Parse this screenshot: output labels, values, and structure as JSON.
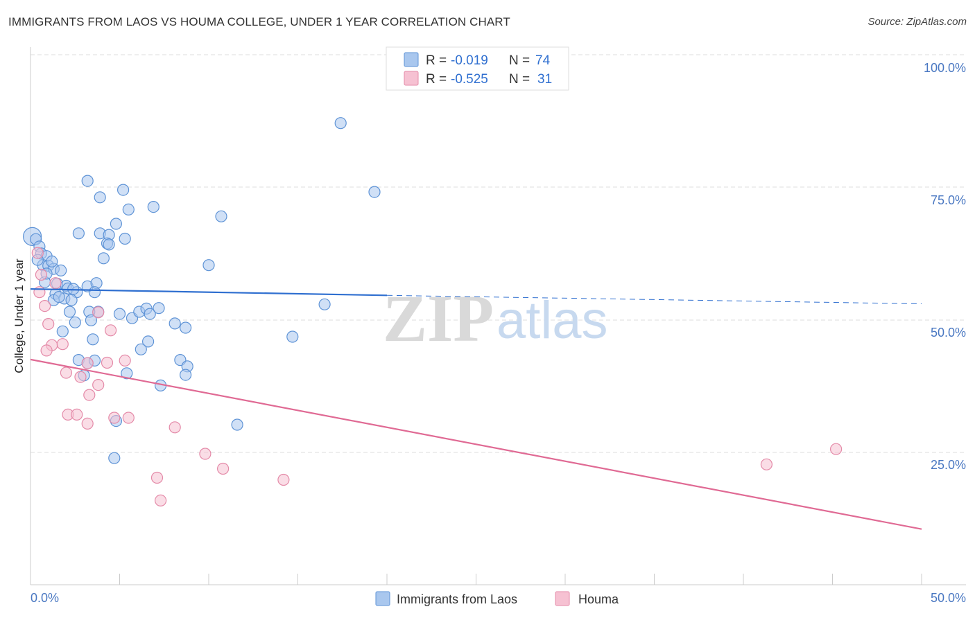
{
  "title": "IMMIGRANTS FROM LAOS VS HOUMA COLLEGE, UNDER 1 YEAR CORRELATION CHART",
  "source": "Source: ZipAtlas.com",
  "watermark": {
    "zip": "ZIP",
    "atlas": "atlas"
  },
  "colors": {
    "blue_fill": "#a9c7ee",
    "blue_stroke": "#5e93d6",
    "blue_line": "#2f6fd0",
    "pink_fill": "#f6c1d2",
    "pink_stroke": "#e48aa8",
    "pink_line": "#e06a94",
    "grid": "#dddddd",
    "axis_text": "#4a78c2"
  },
  "legend": {
    "rows": [
      {
        "r_label": "R =",
        "r_value": "-0.019",
        "n_label": "N =",
        "n_value": "74"
      },
      {
        "r_label": "R =",
        "r_value": "-0.525",
        "n_label": "N =",
        "n_value": "31"
      }
    ]
  },
  "chart_data": {
    "type": "scatter",
    "title": "IMMIGRANTS FROM LAOS VS HOUMA COLLEGE, UNDER 1 YEAR CORRELATION CHART",
    "xlabel": "",
    "ylabel": "College, Under 1 year",
    "xlim": [
      0,
      50
    ],
    "ylim": [
      0,
      100
    ],
    "x_tick_labels": [
      "0.0%",
      "50.0%"
    ],
    "y_tick_labels": [
      "100.0%",
      "75.0%",
      "50.0%",
      "25.0%"
    ],
    "y_tick_values": [
      100,
      75,
      50,
      25
    ],
    "grid": true,
    "legend_position": "bottom",
    "series": [
      {
        "name": "Immigrants from Laos",
        "color": "#a9c7ee",
        "r": -0.019,
        "n": 74,
        "trend": {
          "x0": 0,
          "y0": 55.8,
          "x1": 20,
          "y1": 54.6,
          "dash_x1": 50,
          "dash_y1": 53.0
        },
        "points": [
          [
            0.1,
            65.7
          ],
          [
            0.3,
            65.2
          ],
          [
            0.5,
            63.8
          ],
          [
            0.6,
            62.5
          ],
          [
            0.9,
            62.0
          ],
          [
            0.7,
            60.3
          ],
          [
            1.0,
            60.2
          ],
          [
            1.3,
            59.6
          ],
          [
            1.7,
            59.3
          ],
          [
            0.8,
            57.1
          ],
          [
            1.5,
            56.8
          ],
          [
            2.0,
            56.4
          ],
          [
            2.1,
            55.9
          ],
          [
            2.6,
            55.2
          ],
          [
            1.4,
            54.9
          ],
          [
            1.9,
            54.0
          ],
          [
            2.3,
            53.7
          ],
          [
            1.3,
            53.7
          ],
          [
            3.2,
            56.3
          ],
          [
            3.7,
            56.9
          ],
          [
            3.6,
            55.2
          ],
          [
            3.8,
            51.5
          ],
          [
            3.3,
            51.5
          ],
          [
            2.2,
            51.5
          ],
          [
            2.5,
            49.5
          ],
          [
            3.4,
            49.9
          ],
          [
            1.8,
            47.8
          ],
          [
            3.5,
            46.3
          ],
          [
            2.7,
            42.4
          ],
          [
            3.2,
            41.8
          ],
          [
            3.6,
            42.3
          ],
          [
            3.0,
            39.5
          ],
          [
            3.2,
            76.2
          ],
          [
            3.9,
            73.1
          ],
          [
            5.2,
            74.5
          ],
          [
            5.5,
            70.8
          ],
          [
            6.9,
            71.3
          ],
          [
            4.8,
            68.1
          ],
          [
            3.9,
            66.3
          ],
          [
            2.7,
            66.3
          ],
          [
            4.4,
            66.0
          ],
          [
            4.3,
            64.4
          ],
          [
            4.4,
            64.2
          ],
          [
            5.3,
            65.3
          ],
          [
            4.1,
            61.6
          ],
          [
            10.7,
            69.5
          ],
          [
            10.0,
            60.3
          ],
          [
            5.0,
            51.1
          ],
          [
            5.7,
            50.3
          ],
          [
            6.1,
            51.5
          ],
          [
            6.5,
            52.1
          ],
          [
            6.7,
            51.1
          ],
          [
            7.2,
            52.2
          ],
          [
            8.1,
            49.3
          ],
          [
            8.7,
            48.5
          ],
          [
            6.6,
            45.9
          ],
          [
            6.2,
            44.4
          ],
          [
            8.4,
            42.4
          ],
          [
            8.8,
            41.2
          ],
          [
            8.7,
            39.6
          ],
          [
            5.4,
            39.9
          ],
          [
            7.3,
            37.6
          ],
          [
            4.8,
            30.9
          ],
          [
            11.6,
            30.2
          ],
          [
            4.7,
            23.9
          ],
          [
            14.7,
            46.8
          ],
          [
            16.5,
            52.9
          ],
          [
            17.4,
            87.1
          ],
          [
            19.3,
            74.1
          ],
          [
            0.4,
            61.3
          ],
          [
            1.2,
            61.0
          ],
          [
            0.9,
            58.7
          ],
          [
            2.4,
            55.8
          ],
          [
            1.6,
            54.3
          ]
        ]
      },
      {
        "name": "Houma",
        "color": "#f6c1d2",
        "r": -0.525,
        "n": 31,
        "trend": {
          "x0": 0,
          "y0": 42.5,
          "x1": 50,
          "y1": 10.5
        },
        "points": [
          [
            0.4,
            62.6
          ],
          [
            0.5,
            55.2
          ],
          [
            0.6,
            58.5
          ],
          [
            1.4,
            56.9
          ],
          [
            0.8,
            52.6
          ],
          [
            1.0,
            49.2
          ],
          [
            1.2,
            45.2
          ],
          [
            0.9,
            44.2
          ],
          [
            1.8,
            45.4
          ],
          [
            2.0,
            40.0
          ],
          [
            3.2,
            41.8
          ],
          [
            2.8,
            39.2
          ],
          [
            3.8,
            51.4
          ],
          [
            4.3,
            41.9
          ],
          [
            4.5,
            48.0
          ],
          [
            5.3,
            42.3
          ],
          [
            3.8,
            37.7
          ],
          [
            3.3,
            35.8
          ],
          [
            2.1,
            32.1
          ],
          [
            2.6,
            32.1
          ],
          [
            3.2,
            30.4
          ],
          [
            4.7,
            31.5
          ],
          [
            5.5,
            31.5
          ],
          [
            8.1,
            29.7
          ],
          [
            9.8,
            24.7
          ],
          [
            10.8,
            21.9
          ],
          [
            7.1,
            20.2
          ],
          [
            14.2,
            19.8
          ],
          [
            7.3,
            15.9
          ],
          [
            41.3,
            22.7
          ],
          [
            45.2,
            25.6
          ]
        ]
      }
    ]
  },
  "bottom_legend": {
    "items": [
      {
        "label": "Immigrants from Laos"
      },
      {
        "label": "Houma"
      }
    ]
  }
}
